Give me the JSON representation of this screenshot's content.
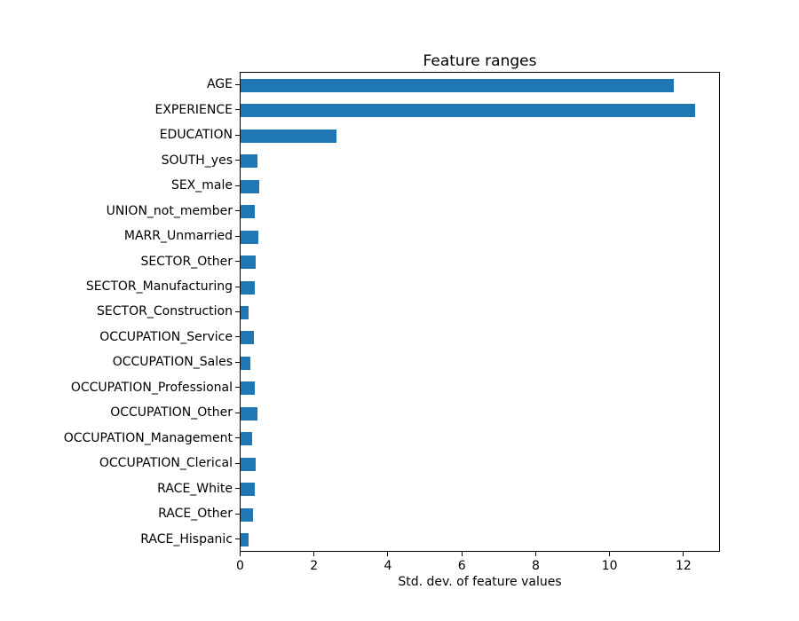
{
  "chart_data": {
    "type": "bar",
    "orientation": "horizontal",
    "title": "Feature ranges",
    "xlabel": "Std. dev. of feature values",
    "ylabel": "",
    "xlim": [
      0,
      13
    ],
    "xticks": [
      0,
      2,
      4,
      6,
      8,
      10,
      12
    ],
    "grid": false,
    "legend": "none",
    "bar_color": "#1f77b4",
    "categories": [
      "AGE",
      "EXPERIENCE",
      "EDUCATION",
      "SOUTH_yes",
      "SEX_male",
      "UNION_not_member",
      "MARR_Unmarried",
      "SECTOR_Other",
      "SECTOR_Manufacturing",
      "SECTOR_Construction",
      "OCCUPATION_Service",
      "OCCUPATION_Sales",
      "OCCUPATION_Professional",
      "OCCUPATION_Other",
      "OCCUPATION_Management",
      "OCCUPATION_Clerical",
      "RACE_White",
      "RACE_Other",
      "RACE_Hispanic"
    ],
    "values": [
      11.76,
      12.36,
      2.6,
      0.46,
      0.5,
      0.39,
      0.48,
      0.41,
      0.39,
      0.22,
      0.37,
      0.26,
      0.38,
      0.47,
      0.32,
      0.41,
      0.39,
      0.34,
      0.21
    ]
  }
}
